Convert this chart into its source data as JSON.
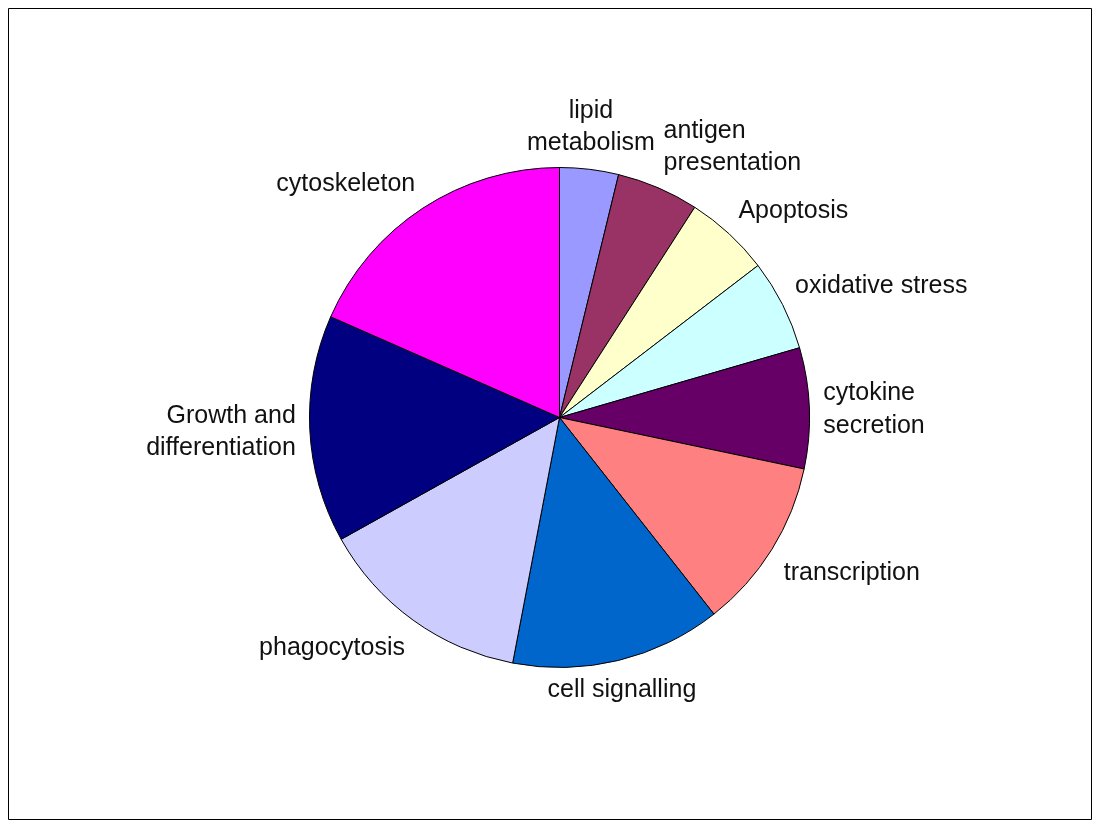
{
  "chart_data": {
    "type": "pie",
    "categories": [
      "lipid\nmetabolism",
      "antigen\npresentation",
      "Apoptosis",
      "oxidative stress",
      "cytokine\nsecretion",
      "transcription",
      "cell signalling",
      "phagocytosis",
      "Growth and\ndifferentiation",
      "cytoskeleton"
    ],
    "values": [
      3.8,
      5.3,
      5.5,
      5.9,
      7.8,
      11.1,
      13.6,
      13.9,
      14.7,
      18.4
    ],
    "colors": [
      "#9999ff",
      "#993366",
      "#ffffcc",
      "#ccffff",
      "#660066",
      "#ff8080",
      "#0066cc",
      "#ccccff",
      "#000080",
      "#ff00ff"
    ]
  }
}
